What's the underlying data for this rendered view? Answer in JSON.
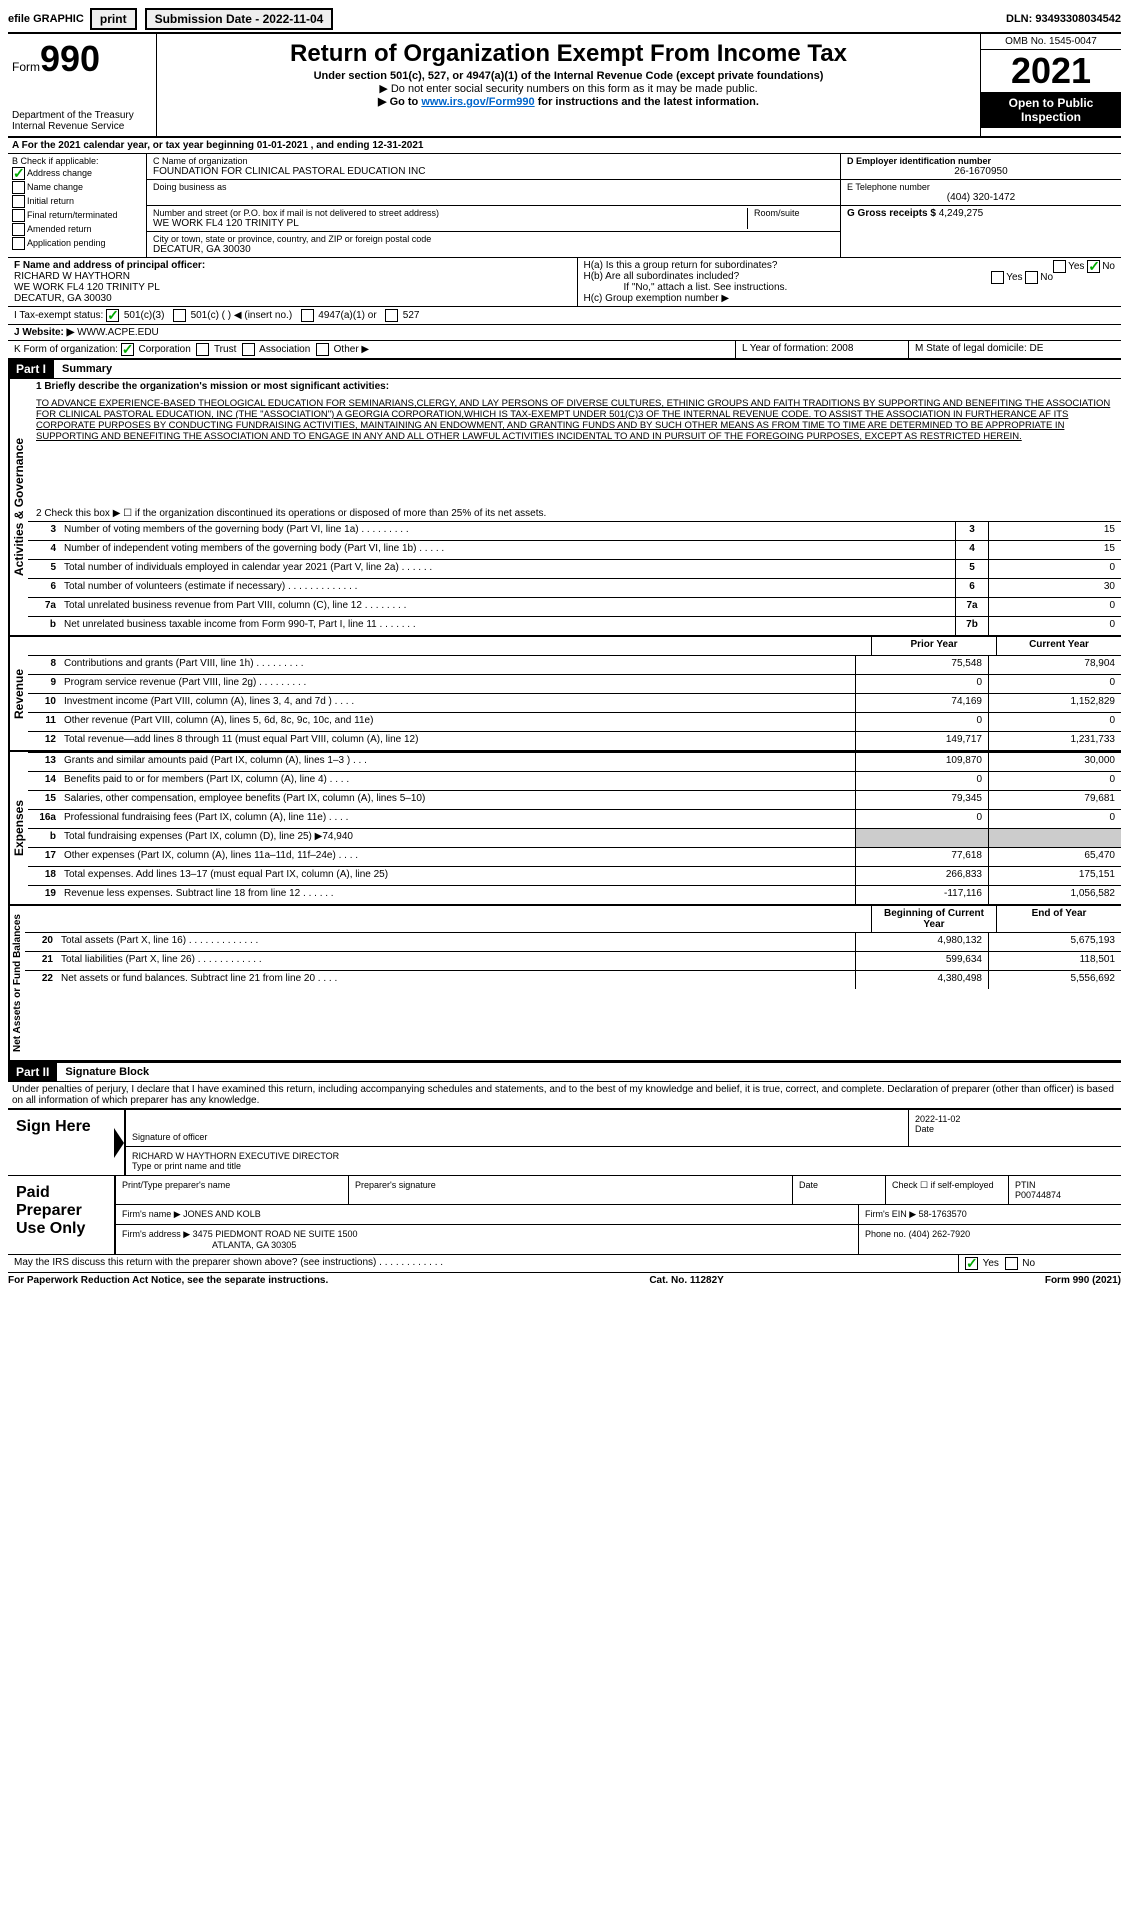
{
  "top": {
    "efile": "efile GRAPHIC",
    "print": "print",
    "sub_label": "Submission Date - 2022-11-04",
    "dln": "DLN: 93493308034542"
  },
  "header": {
    "form_label": "Form",
    "form_number": "990",
    "dept": "Department of the Treasury Internal Revenue Service",
    "title": "Return of Organization Exempt From Income Tax",
    "sub1": "Under section 501(c), 527, or 4947(a)(1) of the Internal Revenue Code (except private foundations)",
    "sub2": "▶ Do not enter social security numbers on this form as it may be made public.",
    "sub3": "▶ Go to ",
    "link": "www.irs.gov/Form990",
    "sub3b": " for instructions and the latest information.",
    "omb": "OMB No. 1545-0047",
    "year": "2021",
    "open": "Open to Public Inspection"
  },
  "period": "A For the 2021 calendar year, or tax year beginning 01-01-2021  , and ending 12-31-2021",
  "colB": {
    "label": "B Check if applicable:",
    "items": [
      "Address change",
      "Name change",
      "Initial return",
      "Final return/terminated",
      "Amended return",
      "Application pending"
    ],
    "checked_index": 0
  },
  "colC": {
    "name_label": "C Name of organization",
    "name": "FOUNDATION FOR CLINICAL PASTORAL EDUCATION INC",
    "dba_label": "Doing business as",
    "addr_label": "Number and street (or P.O. box if mail is not delivered to street address)",
    "addr": "WE WORK FL4 120 TRINITY PL",
    "room_label": "Room/suite",
    "city_label": "City or town, state or province, country, and ZIP or foreign postal code",
    "city": "DECATUR, GA  30030"
  },
  "colD": {
    "ein_label": "D Employer identification number",
    "ein": "26-1670950",
    "phone_label": "E Telephone number",
    "phone": "(404) 320-1472",
    "gross_label": "G Gross receipts $",
    "gross": "4,249,275"
  },
  "rowF": {
    "label": "F  Name and address of principal officer:",
    "name": "RICHARD W HAYTHORN",
    "addr": "WE WORK FL4 120 TRINITY PL",
    "city": "DECATUR, GA  30030"
  },
  "rowH": {
    "ha": "H(a)  Is this a group return for subordinates?",
    "hb": "H(b)  Are all subordinates included?",
    "hb_note": "If \"No,\" attach a list. See instructions.",
    "hc": "H(c)  Group exemption number ▶",
    "yes": "Yes",
    "no": "No"
  },
  "rowI": {
    "label": "I  Tax-exempt status:",
    "o1": "501(c)(3)",
    "o2": "501(c) (   ) ◀ (insert no.)",
    "o3": "4947(a)(1) or",
    "o4": "527"
  },
  "rowJ": {
    "label": "J  Website: ▶",
    "url": "WWW.ACPE.EDU"
  },
  "rowK": {
    "label": "K Form of organization:",
    "o1": "Corporation",
    "o2": "Trust",
    "o3": "Association",
    "o4": "Other ▶"
  },
  "rowL": {
    "label": "L Year of formation:",
    "val": "2008"
  },
  "rowM": {
    "label": "M State of legal domicile:",
    "val": "DE"
  },
  "part1": {
    "tag": "Part I",
    "title": "Summary",
    "l1_label": "1  Briefly describe the organization's mission or most significant activities:",
    "l1_text": "TO ADVANCE EXPERIENCE-BASED THEOLOGICAL EDUCATION FOR SEMINARIANS,CLERGY, AND LAY PERSONS OF DIVERSE CULTURES, ETHINIC GROUPS AND FAITH TRADITIONS BY SUPPORTING AND BENEFITING THE ASSOCIATION FOR CLINICAL PASTORAL EDUCATION, INC (THE \"ASSOCIATION\") A GEORGIA CORPORATION,WHICH IS TAX-EXEMPT UNDER 501(C)3 OF THE INTERNAL REVENUE CODE. TO ASSIST THE ASSOCIATION IN FURTHERANCE AF ITS CORPORATE PURPOSES BY CONDUCTING FUNDRAISING ACTIVITIES, MAINTAINING AN ENDOWMENT, AND GRANTING FUNDS AND BY SUCH OTHER MEANS AS FROM TIME TO TIME ARE DETERMINED TO BE APPROPRIATE IN SUPPORTING AND BENEFITING THE ASSOCIATION AND TO ENGAGE IN ANY AND ALL OTHER LAWFUL ACTIVITIES INCIDENTAL TO AND IN PURSUIT OF THE FOREGOING PURPOSES, EXCEPT AS RESTRICTED HEREIN.",
    "l2": "2  Check this box ▶ ☐  if the organization discontinued its operations or disposed of more than 25% of its net assets.",
    "side_governance": "Activities & Governance",
    "side_revenue": "Revenue",
    "side_expenses": "Expenses",
    "side_net": "Net Assets or Fund Balances",
    "prior_year": "Prior Year",
    "current_year": "Current Year",
    "boy": "Beginning of Current Year",
    "eoy": "End of Year",
    "lines_single": [
      {
        "n": "3",
        "d": "Number of voting members of the governing body (Part VI, line 1a)   .    .    .    .    .    .    .    .    .",
        "b": "3",
        "v": "15"
      },
      {
        "n": "4",
        "d": "Number of independent voting members of the governing body (Part VI, line 1b)   .    .    .    .    .",
        "b": "4",
        "v": "15"
      },
      {
        "n": "5",
        "d": "Total number of individuals employed in calendar year 2021 (Part V, line 2a)   .    .    .    .    .    .",
        "b": "5",
        "v": "0"
      },
      {
        "n": "6",
        "d": "Total number of volunteers (estimate if necessary)   .    .    .    .    .    .    .    .    .    .    .    .    .",
        "b": "6",
        "v": "30"
      },
      {
        "n": "7a",
        "d": "Total unrelated business revenue from Part VIII, column (C), line 12   .    .    .    .    .    .    .    .",
        "b": "7a",
        "v": "0"
      },
      {
        "n": "b",
        "d": "Net unrelated business taxable income from Form 990-T, Part I, line 11   .    .    .    .    .    .    .",
        "b": "7b",
        "v": "0"
      }
    ],
    "lines_rev": [
      {
        "n": "8",
        "d": "Contributions and grants (Part VIII, line 1h)   .    .    .    .    .    .    .    .    .",
        "p": "75,548",
        "c": "78,904"
      },
      {
        "n": "9",
        "d": "Program service revenue (Part VIII, line 2g)   .    .    .    .    .    .    .    .    .",
        "p": "0",
        "c": "0"
      },
      {
        "n": "10",
        "d": "Investment income (Part VIII, column (A), lines 3, 4, and 7d )   .    .    .    .",
        "p": "74,169",
        "c": "1,152,829"
      },
      {
        "n": "11",
        "d": "Other revenue (Part VIII, column (A), lines 5, 6d, 8c, 9c, 10c, and 11e)",
        "p": "0",
        "c": "0"
      },
      {
        "n": "12",
        "d": "Total revenue—add lines 8 through 11 (must equal Part VIII, column (A), line 12)",
        "p": "149,717",
        "c": "1,231,733"
      }
    ],
    "lines_exp": [
      {
        "n": "13",
        "d": "Grants and similar amounts paid (Part IX, column (A), lines 1–3 )   .    .    .",
        "p": "109,870",
        "c": "30,000"
      },
      {
        "n": "14",
        "d": "Benefits paid to or for members (Part IX, column (A), line 4)   .    .    .    .",
        "p": "0",
        "c": "0"
      },
      {
        "n": "15",
        "d": "Salaries, other compensation, employee benefits (Part IX, column (A), lines 5–10)",
        "p": "79,345",
        "c": "79,681"
      },
      {
        "n": "16a",
        "d": "Professional fundraising fees (Part IX, column (A), line 11e)   .    .    .    .",
        "p": "0",
        "c": "0"
      },
      {
        "n": "b",
        "d": "Total fundraising expenses (Part IX, column (D), line 25) ▶74,940",
        "p": "",
        "c": "",
        "grey": true
      },
      {
        "n": "17",
        "d": "Other expenses (Part IX, column (A), lines 11a–11d, 11f–24e)   .    .    .    .",
        "p": "77,618",
        "c": "65,470"
      },
      {
        "n": "18",
        "d": "Total expenses. Add lines 13–17 (must equal Part IX, column (A), line 25)",
        "p": "266,833",
        "c": "175,151"
      },
      {
        "n": "19",
        "d": "Revenue less expenses. Subtract line 18 from line 12   .    .    .    .    .    .",
        "p": "-117,116",
        "c": "1,056,582"
      }
    ],
    "lines_net": [
      {
        "n": "20",
        "d": "Total assets (Part X, line 16)   .    .    .    .    .    .    .    .    .    .    .    .    .",
        "p": "4,980,132",
        "c": "5,675,193"
      },
      {
        "n": "21",
        "d": "Total liabilities (Part X, line 26)   .    .    .    .    .    .    .    .    .    .    .    .",
        "p": "599,634",
        "c": "118,501"
      },
      {
        "n": "22",
        "d": "Net assets or fund balances. Subtract line 21 from line 20   .    .    .    .",
        "p": "4,380,498",
        "c": "5,556,692"
      }
    ]
  },
  "part2": {
    "tag": "Part II",
    "title": "Signature Block",
    "penalty": "Under penalties of perjury, I declare that I have examined this return, including accompanying schedules and statements, and to the best of my knowledge and belief, it is true, correct, and complete. Declaration of preparer (other than officer) is based on all information of which preparer has any knowledge.",
    "sign_here": "Sign Here",
    "sig_officer": "Signature of officer",
    "date": "Date",
    "sig_date": "2022-11-02",
    "name": "RICHARD W HAYTHORN EXECUTIVE DIRECTOR",
    "name_label": "Type or print name and title",
    "paid": "Paid Preparer Use Only",
    "prep_name_label": "Print/Type preparer's name",
    "prep_sig_label": "Preparer's signature",
    "check_label": "Check ☐ if self-employed",
    "ptin_label": "PTIN",
    "ptin": "P00744874",
    "firm_name_label": "Firm's name   ▶",
    "firm_name": "JONES AND KOLB",
    "firm_ein_label": "Firm's EIN ▶",
    "firm_ein": "58-1763570",
    "firm_addr_label": "Firm's address ▶",
    "firm_addr": "3475 PIEDMONT ROAD NE SUITE 1500",
    "firm_city": "ATLANTA, GA  30305",
    "phone_label": "Phone no.",
    "phone": "(404) 262-7920",
    "discuss": "May the IRS discuss this return with the preparer shown above? (see instructions)   .    .    .    .    .    .    .    .    .    .    .    ."
  },
  "footer": {
    "left": "For Paperwork Reduction Act Notice, see the separate instructions.",
    "mid": "Cat. No. 11282Y",
    "right": "Form 990 (2021)"
  }
}
